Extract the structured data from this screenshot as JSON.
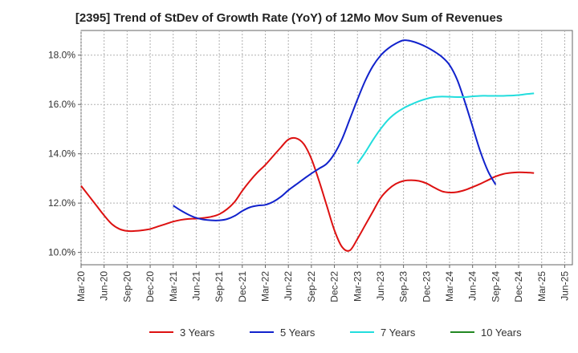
{
  "chart_data": {
    "type": "line",
    "title": "[2395]  Trend of StDev of Growth Rate (YoY) of 12Mo Mov Sum of Revenues",
    "xlabel": "",
    "ylabel": "",
    "ylim": [
      9.5,
      19.0
    ],
    "y_ticks": [
      10.0,
      12.0,
      14.0,
      16.0,
      18.0
    ],
    "y_tick_labels": [
      "10.0%",
      "12.0%",
      "14.0%",
      "16.0%",
      "18.0%"
    ],
    "x_tick_labels": [
      "Mar-20",
      "Jun-20",
      "Sep-20",
      "Dec-20",
      "Mar-21",
      "Jun-21",
      "Sep-21",
      "Dec-21",
      "Mar-22",
      "Jun-22",
      "Sep-22",
      "Dec-22",
      "Mar-23",
      "Jun-23",
      "Sep-23",
      "Dec-23",
      "Mar-24",
      "Jun-24",
      "Sep-24",
      "Dec-24",
      "Mar-25",
      "Jun-25"
    ],
    "x_months_count": 64,
    "grid": true,
    "legend_position": "bottom",
    "series": [
      {
        "name": "3 Years",
        "color": "#dd1111",
        "start_month": 0,
        "values": [
          12.7,
          12.3,
          11.9,
          11.5,
          11.15,
          10.95,
          10.87,
          10.87,
          10.9,
          10.95,
          11.05,
          11.15,
          11.25,
          11.32,
          11.36,
          11.37,
          11.4,
          11.45,
          11.55,
          11.75,
          12.05,
          12.5,
          12.9,
          13.25,
          13.55,
          13.9,
          14.25,
          14.58,
          14.63,
          14.4,
          13.8,
          12.9,
          11.9,
          10.9,
          10.22,
          10.08,
          10.55,
          11.1,
          11.65,
          12.2,
          12.55,
          12.78,
          12.9,
          12.93,
          12.9,
          12.8,
          12.63,
          12.48,
          12.43,
          12.45,
          12.53,
          12.65,
          12.78,
          12.93,
          13.08,
          13.18,
          13.23,
          13.25,
          13.24,
          13.22
        ]
      },
      {
        "name": "5 Years",
        "color": "#1122cc",
        "start_month": 12,
        "values": [
          11.9,
          11.7,
          11.53,
          11.4,
          11.33,
          11.3,
          11.3,
          11.35,
          11.48,
          11.68,
          11.83,
          11.9,
          11.93,
          12.05,
          12.25,
          12.52,
          12.75,
          12.98,
          13.2,
          13.4,
          13.6,
          14.0,
          14.6,
          15.4,
          16.2,
          16.95,
          17.55,
          17.98,
          18.27,
          18.47,
          18.6,
          18.57,
          18.47,
          18.33,
          18.15,
          17.93,
          17.6,
          17.0,
          16.1,
          15.1,
          14.1,
          13.3,
          12.75
        ]
      },
      {
        "name": "7 Years",
        "color": "#22dddd",
        "start_month": 36,
        "values": [
          13.6,
          14.05,
          14.55,
          15.0,
          15.38,
          15.65,
          15.85,
          16.0,
          16.13,
          16.23,
          16.3,
          16.32,
          16.31,
          16.3,
          16.3,
          16.33,
          16.35,
          16.35,
          16.35,
          16.35,
          16.36,
          16.38,
          16.42,
          16.45
        ]
      },
      {
        "name": "10 Years",
        "color": "#228822",
        "start_month": 0,
        "values": []
      }
    ]
  }
}
